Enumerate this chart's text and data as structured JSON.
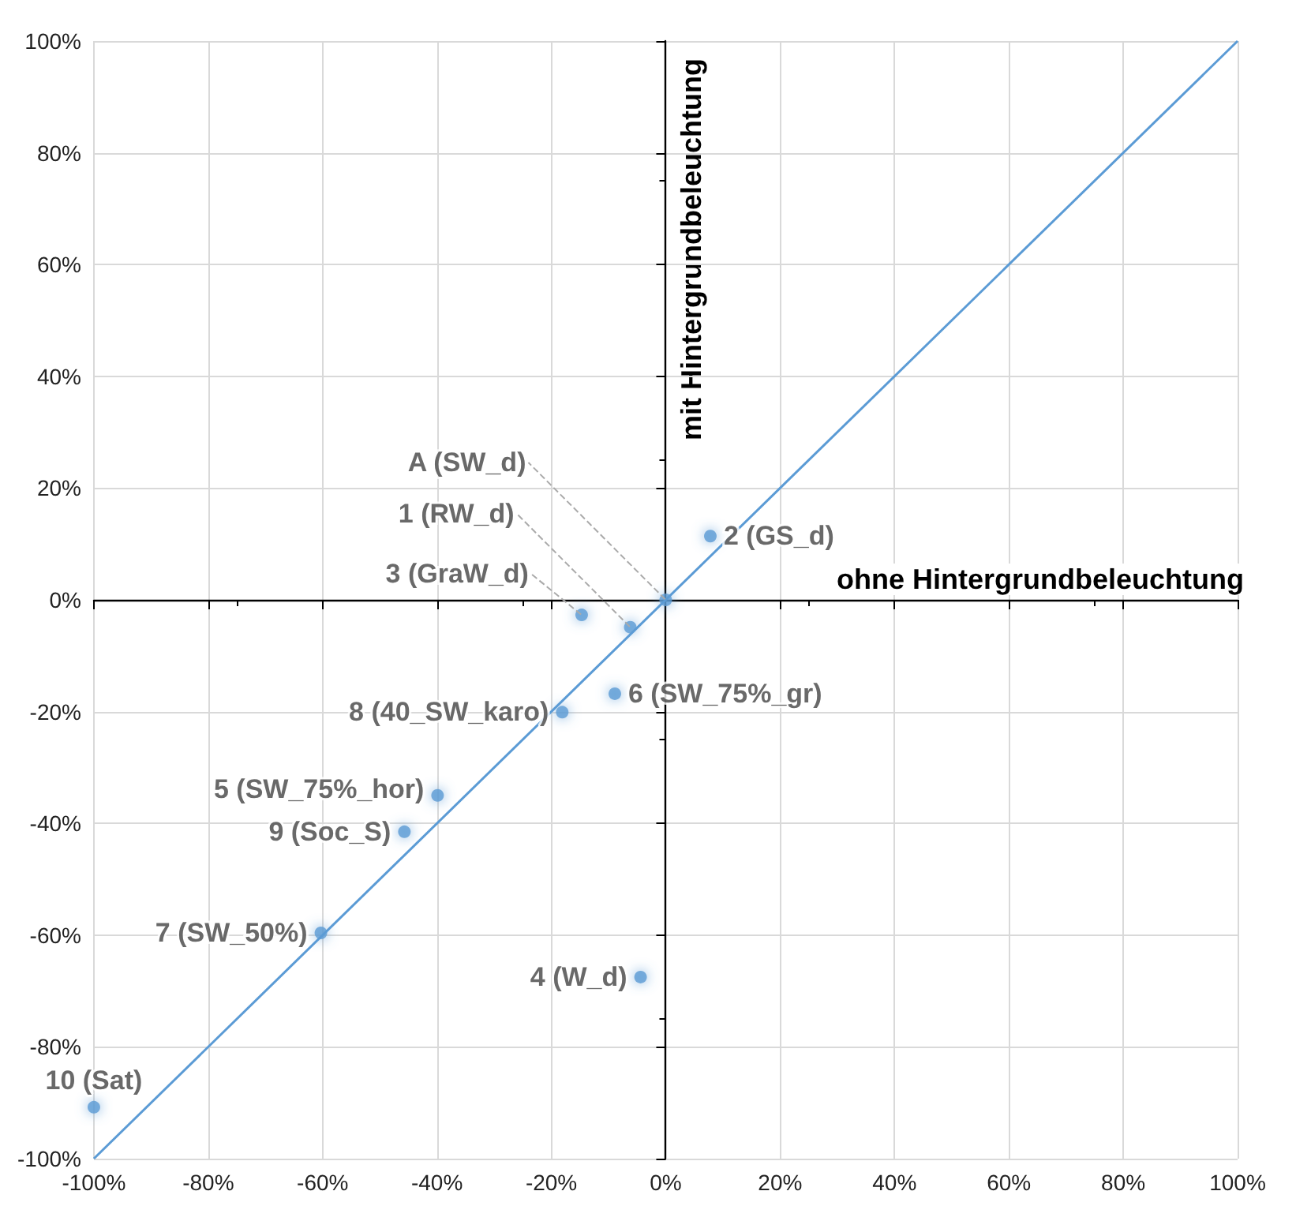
{
  "chart_data": {
    "type": "scatter",
    "xlabel": "ohne Hintergrundbeleuchtung",
    "ylabel": "mit Hintergrundbeleuchtung",
    "x": [
      0,
      -6.2,
      7.8,
      -14.7,
      -4.4,
      -39.9,
      -8.9,
      -60.3,
      -18.1,
      -45.7,
      -100
    ],
    "series": [
      {
        "color": "#5b9bd5",
        "marker": "circle",
        "values": [
          0,
          -4.9,
          11.4,
          -2.7,
          -67.5,
          -35,
          -16.8,
          -59.6,
          -20.1,
          -41.5,
          -90.8
        ]
      },
      {
        "type": "line",
        "color": "#5b9bd5",
        "x": [
          -100,
          100
        ],
        "values": [
          -100,
          100
        ]
      }
    ],
    "annotations": [
      {
        "text": "A (SW_d)",
        "x": 0,
        "y": 0
      },
      {
        "text": "1 (RW_d)",
        "x": -6.2,
        "y": -4.9
      },
      {
        "text": "2 (GS_d)",
        "x": 7.8,
        "y": 11.4
      },
      {
        "text": "3 (GraW_d)",
        "x": -14.7,
        "y": -2.7
      },
      {
        "text": "4 (W_d)",
        "x": -4.4,
        "y": -67.5
      },
      {
        "text": "5 (SW_75%_hor)",
        "x": -39.9,
        "y": -35
      },
      {
        "text": "6 (SW_75%_gr)",
        "x": -8.9,
        "y": -16.8
      },
      {
        "text": "7 (SW_50%)",
        "x": -60.3,
        "y": -59.6
      },
      {
        "text": "8 (40_SW_karo)",
        "x": -18.1,
        "y": -20.1
      },
      {
        "text": "9 (Soc_S)",
        "x": -45.7,
        "y": -41.5
      },
      {
        "text": "10 (Sat)",
        "x": -100,
        "y": -90.8
      }
    ],
    "xlim": [
      -100,
      100
    ],
    "ylim": [
      -100,
      100
    ],
    "xticks": [
      {
        "value": -100,
        "label": "-100%"
      },
      {
        "value": -80,
        "label": "-80%"
      },
      {
        "value": -60,
        "label": "-60%"
      },
      {
        "value": -40,
        "label": "-40%"
      },
      {
        "value": -20,
        "label": "-20%"
      },
      {
        "value": 0,
        "label": "0%"
      },
      {
        "value": 20,
        "label": "20%"
      },
      {
        "value": 40,
        "label": "40%"
      },
      {
        "value": 60,
        "label": "60%"
      },
      {
        "value": 80,
        "label": "80%"
      },
      {
        "value": 100,
        "label": "100%"
      }
    ],
    "yticks": [
      {
        "value": -100,
        "label": "-100%"
      },
      {
        "value": -80,
        "label": "-80%"
      },
      {
        "value": -60,
        "label": "-60%"
      },
      {
        "value": -40,
        "label": "-40%"
      },
      {
        "value": -20,
        "label": "-20%"
      },
      {
        "value": 0,
        "label": "0%"
      },
      {
        "value": 20,
        "label": "20%"
      },
      {
        "value": 40,
        "label": "40%"
      },
      {
        "value": 60,
        "label": "60%"
      },
      {
        "value": 80,
        "label": "80%"
      },
      {
        "value": 100,
        "label": "100%"
      }
    ],
    "grid": true,
    "line_style": "solid"
  }
}
